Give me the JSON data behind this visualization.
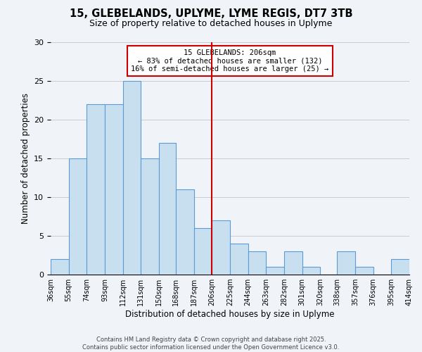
{
  "title": "15, GLEBELANDS, UPLYME, LYME REGIS, DT7 3TB",
  "subtitle": "Size of property relative to detached houses in Uplyme",
  "xlabel": "Distribution of detached houses by size in Uplyme",
  "ylabel": "Number of detached properties",
  "bin_edges": [
    36,
    55,
    74,
    93,
    112,
    131,
    150,
    168,
    187,
    206,
    225,
    244,
    263,
    282,
    301,
    320,
    338,
    357,
    376,
    395,
    414
  ],
  "bar_heights": [
    2,
    15,
    22,
    22,
    25,
    15,
    17,
    11,
    6,
    7,
    4,
    3,
    1,
    3,
    1,
    0,
    3,
    1,
    0,
    2
  ],
  "bar_color": "#c8dff0",
  "bar_edge_color": "#5b9bd5",
  "vline_x": 206,
  "vline_color": "#cc0000",
  "annotation_title": "15 GLEBELANDS: 206sqm",
  "annotation_line1": "← 83% of detached houses are smaller (132)",
  "annotation_line2": "16% of semi-detached houses are larger (25) →",
  "annotation_box_color": "#ffffff",
  "annotation_box_edge": "#cc0000",
  "ylim": [
    0,
    30
  ],
  "yticks": [
    0,
    5,
    10,
    15,
    20,
    25,
    30
  ],
  "grid_color": "#cccccc",
  "background_color": "#f0f4f8",
  "footer1": "Contains HM Land Registry data © Crown copyright and database right 2025.",
  "footer2": "Contains public sector information licensed under the Open Government Licence v3.0.",
  "title_fontsize": 10.5,
  "subtitle_fontsize": 9,
  "tick_label_fontsize": 7,
  "axis_label_fontsize": 8.5
}
